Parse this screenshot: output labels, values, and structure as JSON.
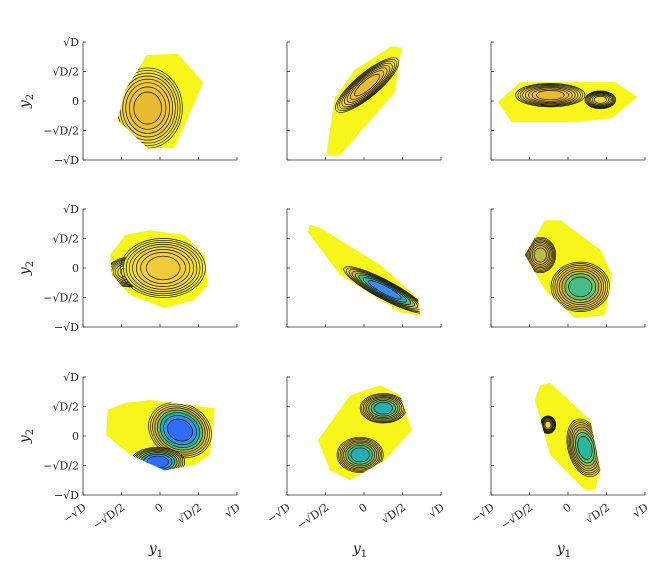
{
  "chart_data": {
    "type": "contour",
    "title": "",
    "grid": false,
    "xlabel": "y1",
    "ylabel": "y2",
    "xlabel_main": "y",
    "xlabel_sub": "1",
    "ylabel_main": "y",
    "ylabel_sub": "2",
    "units": "sqrt(D)",
    "xlim": [
      -1,
      1
    ],
    "ylim": [
      -1,
      1
    ],
    "tick_values": [
      -1,
      -0.5,
      0,
      0.5,
      1
    ],
    "y_tick_labels": [
      "−√D",
      "−√D/2",
      "0",
      "√D/2",
      "√D"
    ],
    "x_tick_labels": [
      "−√D",
      "−√D/2",
      "0",
      "√D/2",
      "√D"
    ],
    "colormap": [
      "#f8f51a",
      "#f6cf3a",
      "#e6b530",
      "#7cc65a",
      "#22b5a6",
      "#3a8ff0",
      "#2d5ef2"
    ],
    "panels": [
      {
        "row": 0,
        "col": 0,
        "hull": [
          [
            -0.17,
            0.78
          ],
          [
            0.23,
            0.8
          ],
          [
            0.56,
            0.32
          ],
          [
            0.19,
            -0.8
          ],
          [
            -0.16,
            -0.8
          ],
          [
            -0.55,
            -0.32
          ],
          [
            -0.45,
            0.19
          ]
        ],
        "modes": [
          {
            "center": [
              -0.16,
              -0.12
            ],
            "sx": 0.45,
            "sy": 0.68,
            "rot": 0,
            "peak": 0.3
          }
        ]
      },
      {
        "row": 0,
        "col": 1,
        "hull": [
          [
            -0.38,
            0.05
          ],
          [
            -0.12,
            0.53
          ],
          [
            0.36,
            0.93
          ],
          [
            0.49,
            0.9
          ],
          [
            0.4,
            0.15
          ],
          [
            -0.31,
            -0.92
          ],
          [
            -0.49,
            -0.92
          ]
        ],
        "modes": [
          {
            "center": [
              0.04,
              0.27
            ],
            "sx": 0.52,
            "sy": 0.2,
            "rot": -40,
            "peak": 0.3
          }
        ]
      },
      {
        "row": 0,
        "col": 2,
        "hull": [
          [
            -0.91,
            -0.02
          ],
          [
            -0.62,
            0.32
          ],
          [
            0.61,
            0.32
          ],
          [
            0.9,
            0.07
          ],
          [
            0.57,
            -0.29
          ],
          [
            0.09,
            -0.36
          ],
          [
            -0.73,
            -0.36
          ]
        ],
        "modes": [
          {
            "center": [
              0.42,
              0.02
            ],
            "sx": 0.2,
            "sy": 0.15,
            "rot": 0,
            "peak": 0.1
          },
          {
            "center": [
              -0.23,
              0.1
            ],
            "sx": 0.45,
            "sy": 0.2,
            "rot": 0,
            "peak": 0.3
          }
        ]
      },
      {
        "row": 1,
        "col": 0,
        "hull": [
          [
            -0.65,
            0.22
          ],
          [
            -0.45,
            0.56
          ],
          [
            -0.13,
            0.64
          ],
          [
            0.32,
            0.56
          ],
          [
            0.58,
            0.22
          ],
          [
            0.62,
            -0.29
          ],
          [
            0.45,
            -0.54
          ],
          [
            0.06,
            -0.68
          ],
          [
            -0.39,
            -0.46
          ],
          [
            -0.62,
            -0.12
          ]
        ],
        "modes": [
          {
            "center": [
              -0.39,
              -0.07
            ],
            "sx": 0.3,
            "sy": 0.25,
            "rot": 0,
            "peak": 0.1
          },
          {
            "center": [
              0.04,
              0.0
            ],
            "sx": 0.55,
            "sy": 0.5,
            "rot": 0,
            "peak": 0.2
          }
        ]
      },
      {
        "row": 1,
        "col": 1,
        "hull": [
          [
            -0.7,
            0.73
          ],
          [
            -0.57,
            0.68
          ],
          [
            0.21,
            0.05
          ],
          [
            0.7,
            -0.51
          ],
          [
            0.73,
            -0.81
          ],
          [
            0.47,
            -0.75
          ],
          [
            -0.31,
            -0.12
          ],
          [
            -0.73,
            0.61
          ]
        ],
        "modes": [
          {
            "center": [
              0.27,
              -0.37
            ],
            "sx": 0.6,
            "sy": 0.16,
            "rot": 28,
            "peak": 0.85
          }
        ]
      },
      {
        "row": 1,
        "col": 2,
        "hull": [
          [
            -0.3,
            0.81
          ],
          [
            -0.1,
            0.81
          ],
          [
            0.42,
            0.31
          ],
          [
            0.57,
            -0.12
          ],
          [
            0.48,
            -0.8
          ],
          [
            0.09,
            -0.85
          ],
          [
            -0.3,
            -0.37
          ],
          [
            -0.56,
            0.22
          ]
        ],
        "modes": [
          {
            "center": [
              -0.36,
              0.22
            ],
            "sx": 0.2,
            "sy": 0.3,
            "rot": 0,
            "peak": 0.4
          },
          {
            "center": [
              0.16,
              -0.32
            ],
            "sx": 0.38,
            "sy": 0.42,
            "rot": 0,
            "peak": 0.6
          }
        ]
      },
      {
        "row": 2,
        "col": 0,
        "hull": [
          [
            -0.68,
            0.44
          ],
          [
            -0.45,
            0.56
          ],
          [
            -0.13,
            0.61
          ],
          [
            0.71,
            0.47
          ],
          [
            0.65,
            -0.32
          ],
          [
            0.45,
            -0.49
          ],
          [
            0.06,
            -0.58
          ],
          [
            -0.39,
            -0.32
          ],
          [
            -0.7,
            0.02
          ]
        ],
        "modes": [
          {
            "center": [
              0.26,
              0.1
            ],
            "sx": 0.42,
            "sy": 0.45,
            "rot": 25,
            "peak": 0.95
          },
          {
            "center": [
              -0.03,
              -0.44
            ],
            "sx": 0.35,
            "sy": 0.25,
            "rot": 0,
            "peak": 0.95
          }
        ]
      },
      {
        "row": 2,
        "col": 1,
        "hull": [
          [
            -0.6,
            -0.07
          ],
          [
            -0.18,
            0.69
          ],
          [
            0.21,
            0.86
          ],
          [
            0.47,
            0.69
          ],
          [
            0.62,
            0.1
          ],
          [
            0.27,
            -0.41
          ],
          [
            -0.18,
            -0.75
          ],
          [
            -0.44,
            -0.58
          ]
        ],
        "modes": [
          {
            "center": [
              0.25,
              0.47
            ],
            "sx": 0.3,
            "sy": 0.25,
            "rot": 0,
            "peak": 0.7
          },
          {
            "center": [
              -0.05,
              -0.32
            ],
            "sx": 0.3,
            "sy": 0.3,
            "rot": 0,
            "peak": 0.7
          }
        ]
      },
      {
        "row": 2,
        "col": 2,
        "hull": [
          [
            -0.36,
            0.86
          ],
          [
            -0.23,
            0.9
          ],
          [
            0.29,
            0.27
          ],
          [
            0.42,
            -0.58
          ],
          [
            0.35,
            -0.92
          ],
          [
            0.22,
            -0.92
          ],
          [
            -0.23,
            -0.32
          ],
          [
            -0.43,
            0.61
          ]
        ],
        "modes": [
          {
            "center": [
              -0.26,
              0.19
            ],
            "sx": 0.1,
            "sy": 0.15,
            "rot": 0,
            "peak": 0.15
          },
          {
            "center": [
              0.22,
              -0.2
            ],
            "sx": 0.22,
            "sy": 0.5,
            "rot": -15,
            "peak": 0.65
          }
        ]
      }
    ]
  }
}
